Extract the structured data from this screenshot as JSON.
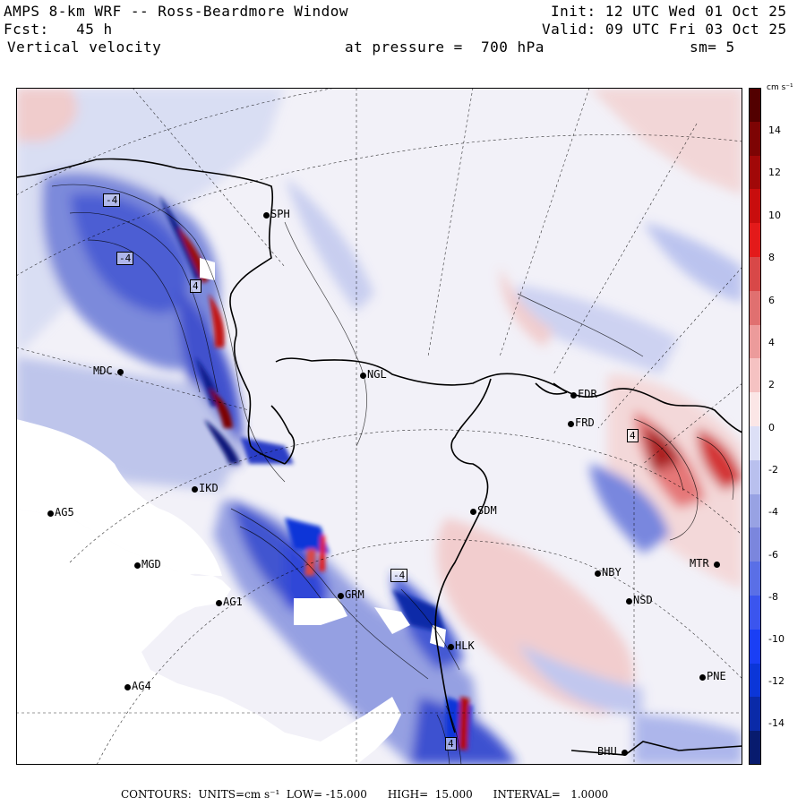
{
  "header": {
    "title": "AMPS 8-km WRF -- Ross-Beardmore Window",
    "forecast": "Fcst:   45 h",
    "field": "Vertical velocity",
    "init": "Init: 12 UTC Wed 01 Oct 25",
    "valid": "Valid: 09 UTC Fri 03 Oct 25",
    "pressure": "at pressure =  700 hPa",
    "smoothing": "sm= 5"
  },
  "colorbar": {
    "units": "cm s⁻¹",
    "ticks": [
      "14",
      "12",
      "10",
      "8",
      "6",
      "4",
      "2",
      "0",
      "-2",
      "-4",
      "-6",
      "-8",
      "-10",
      "-12",
      "-14"
    ],
    "colors": [
      "#081b6e",
      "#0a2aa8",
      "#0b36d8",
      "#1a3ff5",
      "#3b55ee",
      "#5a6fe6",
      "#7b86dd",
      "#98a2e3",
      "#b9c0ee",
      "#dcdff6",
      "#fbe6e6",
      "#f5c2c2",
      "#ec9b9b",
      "#e07070",
      "#d84848",
      "#e31a1a",
      "#c80d0d",
      "#a10808",
      "#7d0404",
      "#520000"
    ]
  },
  "footer": {
    "text": "CONTOURS:  UNITS=cm s⁻¹  LOW= -15.000      HIGH=  15.000      INTERVAL=   1.0000"
  },
  "stations": [
    {
      "id": "SPH",
      "label": "SPH"
    },
    {
      "id": "MDC",
      "label": "MDC"
    },
    {
      "id": "NGL",
      "label": "NGL"
    },
    {
      "id": "FDR",
      "label": "FDR"
    },
    {
      "id": "FRD",
      "label": "FRD"
    },
    {
      "id": "IKD",
      "label": "IKD"
    },
    {
      "id": "AG5",
      "label": "AG5"
    },
    {
      "id": "MGD",
      "label": "MGD"
    },
    {
      "id": "AG1",
      "label": "AG1"
    },
    {
      "id": "AG4",
      "label": "AG4"
    },
    {
      "id": "SDM",
      "label": "SDM"
    },
    {
      "id": "GRM",
      "label": "GRM"
    },
    {
      "id": "HLK",
      "label": "HLK"
    },
    {
      "id": "NBY",
      "label": "NBY"
    },
    {
      "id": "NSD",
      "label": "NSD"
    },
    {
      "id": "PNE",
      "label": "PNE"
    },
    {
      "id": "BHU",
      "label": "BHU"
    },
    {
      "id": "MTR",
      "label": "MTR"
    }
  ],
  "contour_labels": [
    "-4",
    "-4",
    "4",
    "-4",
    "4",
    "4"
  ]
}
